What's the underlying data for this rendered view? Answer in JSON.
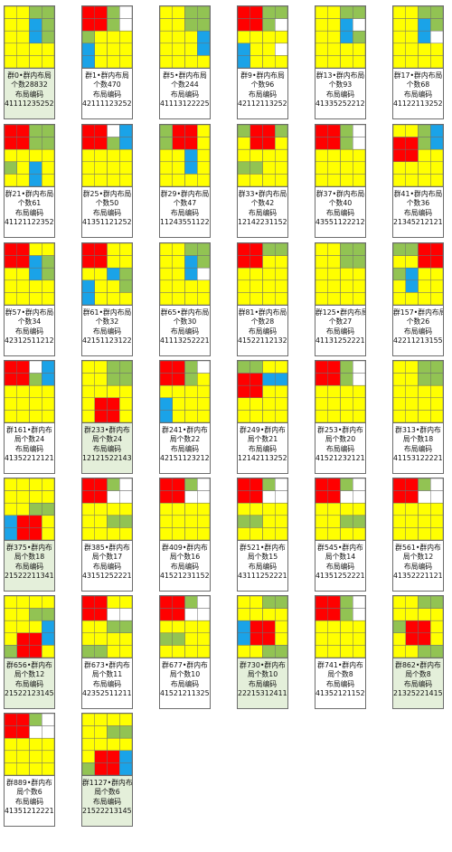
{
  "colors": {
    "red": "#ff0000",
    "yellow": "#ffff00",
    "green": "#92c353",
    "blue": "#1aa3e8",
    "empty": "#ffffff",
    "grid": "#6d6d6d",
    "highlight": "#e4efda"
  },
  "cards": [
    {
      "lines": [
        "群0•群内布局",
        "个数28832",
        "布局编码",
        "411112352522"
      ],
      "highlight": true,
      "layout": [
        "YYGG",
        "YYBG",
        "YYBG",
        "YYYY",
        "YYYY"
      ]
    },
    {
      "lines": [
        "群1•群内布局",
        "个数470",
        "布局编码",
        "421111232525"
      ],
      "highlight": false,
      "layout": [
        "RRGW",
        "RRGW",
        "GYYY",
        "BYYY",
        "BYYY"
      ]
    },
    {
      "lines": [
        "群5•群内布局",
        "个数244",
        "布局编码",
        "411131222255"
      ],
      "highlight": false,
      "layout": [
        "YYGG",
        "YYGG",
        "YYYB",
        "YYYB",
        "YYYY"
      ]
    },
    {
      "lines": [
        "群9•群内布局",
        "个数96",
        "布局编码",
        "421121132525"
      ],
      "highlight": false,
      "layout": [
        "RRGG",
        "RRGW",
        "YYYY",
        "BYYW",
        "BYYY"
      ]
    },
    {
      "lines": [
        "群13•群内布局",
        "个数93",
        "布局编码",
        "413352522121"
      ],
      "highlight": false,
      "layout": [
        "YYGG",
        "YYBW",
        "YYBG",
        "YYYY",
        "YYYY"
      ]
    },
    {
      "lines": [
        "群17•群内布局",
        "个数68",
        "布局编码",
        "411221132525"
      ],
      "highlight": false,
      "layout": [
        "YYGG",
        "YYBG",
        "YYBW",
        "YYYY",
        "YYYY"
      ]
    },
    {
      "lines": [
        "群21•群内布局",
        "个数61",
        "布局编码",
        "411211223525"
      ],
      "highlight": false,
      "layout": [
        "RRGG",
        "RRGG",
        "YYYY",
        "GYBY",
        "YYBY"
      ]
    },
    {
      "lines": [
        "群25•群内布局",
        "个数50",
        "布局编码",
        "413511212522"
      ],
      "highlight": false,
      "layout": [
        "RRWB",
        "RRGB",
        "YYYY",
        "YYYY",
        "YYYY"
      ]
    },
    {
      "lines": [
        "群29•群内布局",
        "个数47",
        "布局编码",
        "112435511222"
      ],
      "highlight": false,
      "layout": [
        "GRRY",
        "GRRY",
        "YYBY",
        "YYBY",
        "YYYY"
      ]
    },
    {
      "lines": [
        "群33•群内布局",
        "个数42",
        "布局编码",
        "121422311525"
      ],
      "highlight": false,
      "layout": [
        "GRRG",
        "YRRY",
        "YYYY",
        "GGYY",
        "YYYY"
      ]
    },
    {
      "lines": [
        "群37•群内布局",
        "个数40",
        "布局编码",
        "435511222121"
      ],
      "highlight": false,
      "layout": [
        "RRGW",
        "RRGW",
        "YYYY",
        "YYYY",
        "YYYY"
      ]
    },
    {
      "lines": [
        "群41•群内布局",
        "个数36",
        "布局编码",
        "213452121215"
      ],
      "highlight": false,
      "layout": [
        "YYGB",
        "RRGB",
        "RRYY",
        "YYYY",
        "YYYY"
      ]
    },
    {
      "lines": [
        "群57•群内布局",
        "个数34",
        "布局编码",
        "423125112125"
      ],
      "highlight": false,
      "layout": [
        "RRYY",
        "RRBG",
        "YYBG",
        "YYYY",
        "YYYY"
      ]
    },
    {
      "lines": [
        "群61•群内布局",
        "个数32",
        "布局编码",
        "421511231225"
      ],
      "highlight": false,
      "layout": [
        "RRYY",
        "RRYY",
        "YYBG",
        "BYYG",
        "BYYY"
      ]
    },
    {
      "lines": [
        "群65•群内布局",
        "个数30",
        "布局编码",
        "411132522215"
      ],
      "highlight": false,
      "layout": [
        "YYGG",
        "YYBG",
        "YYBW",
        "YYYY",
        "YYYY"
      ]
    },
    {
      "lines": [
        "群81•群内布局",
        "个数28",
        "布局编码",
        "415221121325"
      ],
      "highlight": false,
      "layout": [
        "RRGG",
        "RRYY",
        "YYYY",
        "YYYY",
        "YYYY"
      ]
    },
    {
      "lines": [
        "群125•群内布局",
        "个数27",
        "布局编码",
        "411312522215"
      ],
      "highlight": false,
      "layout": [
        "YYGG",
        "YYGG",
        "YYYY",
        "YYYY",
        "YYYY"
      ]
    },
    {
      "lines": [
        "群157•群内布局",
        "个数26",
        "布局编码",
        "422112131552"
      ],
      "highlight": false,
      "layout": [
        "GGRR",
        "YYRR",
        "GBYY",
        "YBYY",
        "YYYY"
      ]
    },
    {
      "lines": [
        "群161•群内布",
        "局个数24",
        "布局编码",
        "413522121215"
      ],
      "highlight": false,
      "layout": [
        "RRWB",
        "RRGB",
        "YYYY",
        "YYYY",
        "YYYY"
      ]
    },
    {
      "lines": [
        "群233•群内布",
        "局个数24",
        "布局编码",
        "121215221435"
      ],
      "highlight": true,
      "layout": [
        "YYGG",
        "YYGG",
        "YYYY",
        "YRRY",
        "YRRY"
      ]
    },
    {
      "lines": [
        "群241•群内布",
        "局个数22",
        "布局编码",
        "421511232125"
      ],
      "highlight": false,
      "layout": [
        "RRGW",
        "RRGY",
        "YYYY",
        "BYYY",
        "BYYY"
      ]
    },
    {
      "lines": [
        "群249•群内布",
        "局个数21",
        "布局编码",
        "121421132525"
      ],
      "highlight": false,
      "layout": [
        "GGYY",
        "RRBB",
        "RRYY",
        "YYYY",
        "YYYY"
      ]
    },
    {
      "lines": [
        "群253•群内布",
        "局个数20",
        "布局编码",
        "415212321215"
      ],
      "highlight": false,
      "layout": [
        "RRGW",
        "RRGW",
        "YYYY",
        "YYYY",
        "YYYY"
      ]
    },
    {
      "lines": [
        "群313•群内布",
        "局个数18",
        "布局编码",
        "411531222215"
      ],
      "highlight": false,
      "layout": [
        "YYGG",
        "YYGG",
        "YYYY",
        "YYYY",
        "YYYY"
      ]
    },
    {
      "lines": [
        "群375•群内布",
        "局个数18",
        "布局编码",
        "215222113415"
      ],
      "highlight": true,
      "layout": [
        "YYYY",
        "YYYY",
        "YYGG",
        "BRRY",
        "BRRY"
      ]
    },
    {
      "lines": [
        "群385•群内布",
        "局个数17",
        "布局编码",
        "431512522211"
      ],
      "highlight": false,
      "layout": [
        "RRGW",
        "RRWW",
        "YYYY",
        "YYGG",
        "YYYY"
      ]
    },
    {
      "lines": [
        "群409•群内布",
        "局个数16",
        "布局编码",
        "415212311522"
      ],
      "highlight": false,
      "layout": [
        "RRGW",
        "RRWW",
        "YYYY",
        "YYYY",
        "YYYY"
      ]
    },
    {
      "lines": [
        "群521•群内布",
        "局个数15",
        "布局编码",
        "431112522215"
      ],
      "highlight": false,
      "layout": [
        "RRGW",
        "RRWW",
        "YYYY",
        "GGYY",
        "YYYY"
      ]
    },
    {
      "lines": [
        "群545•群内布",
        "局个数14",
        "布局编码",
        "413512522211"
      ],
      "highlight": false,
      "layout": [
        "RRGW",
        "RRWW",
        "YYYY",
        "YYGG",
        "YYYY"
      ]
    },
    {
      "lines": [
        "群561•群内布",
        "局个数12",
        "布局编码",
        "413522211215"
      ],
      "highlight": false,
      "layout": [
        "RRGW",
        "RRWW",
        "YYYY",
        "YYYY",
        "YYYY"
      ]
    },
    {
      "lines": [
        "群656•群内布",
        "局个数12",
        "布局编码",
        "215221231451"
      ],
      "highlight": true,
      "layout": [
        "YYYY",
        "YYGG",
        "YYYB",
        "YRRB",
        "GRRY"
      ]
    },
    {
      "lines": [
        "群673•群内布",
        "局个数11",
        "布局编码",
        "423525112112"
      ],
      "highlight": false,
      "layout": [
        "RRYY",
        "RRWW",
        "YYGG",
        "YYYY",
        "GGYY"
      ]
    },
    {
      "lines": [
        "群677•群内布",
        "局个数10",
        "布局编码",
        "415212113252"
      ],
      "highlight": false,
      "layout": [
        "RRGW",
        "RRWW",
        "YYYY",
        "GGYY",
        "YYYY"
      ]
    },
    {
      "lines": [
        "群730•群内布",
        "局个数10",
        "布局编码",
        "222153124115"
      ],
      "highlight": true,
      "layout": [
        "YYGG",
        "YYYY",
        "BRRY",
        "BRRY",
        "YYGG"
      ]
    },
    {
      "lines": [
        "群741•群内布",
        "局个数8",
        "布局编码",
        "413521211522"
      ],
      "highlight": false,
      "layout": [
        "RRGW",
        "RRGW",
        "YYYY",
        "YYYY",
        "YYYY"
      ]
    },
    {
      "lines": [
        "群862•群内布",
        "局个数8",
        "布局编码",
        "213252214151"
      ],
      "highlight": true,
      "layout": [
        "YYGG",
        "YYYY",
        "GRRY",
        "YRRY",
        "YYGG"
      ]
    },
    {
      "lines": [
        "群889•群内布",
        "局个数6",
        "布局编码",
        "413512122215"
      ],
      "highlight": false,
      "layout": [
        "RRGW",
        "RRWW",
        "YYYY",
        "YYYY",
        "YYYY"
      ]
    },
    {
      "lines": [
        "群1127•群内布",
        "局个数6",
        "布局编码",
        "215222131451"
      ],
      "highlight": true,
      "layout": [
        "YYYY",
        "YYGG",
        "YYYY",
        "YRRB",
        "GRRB"
      ]
    }
  ]
}
